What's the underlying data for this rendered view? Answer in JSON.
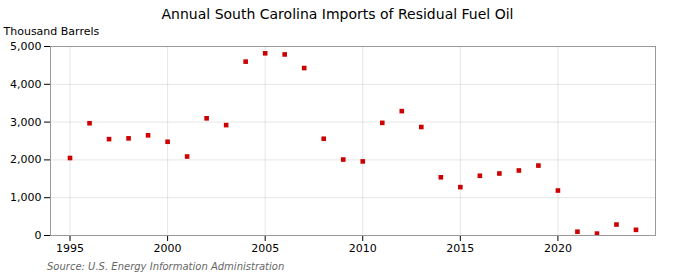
{
  "chart_data": {
    "type": "scatter",
    "title": "Annual South Carolina Imports of Residual Fuel Oil",
    "ylabel": "Thousand Barrels",
    "caption": "Source: U.S. Energy Information Administration",
    "x": [
      1995,
      1996,
      1997,
      1998,
      1999,
      2000,
      2001,
      2002,
      2003,
      2004,
      2005,
      2006,
      2007,
      2008,
      2009,
      2010,
      2011,
      2012,
      2013,
      2014,
      2015,
      2016,
      2017,
      2018,
      2019,
      2020,
      2021,
      2022,
      2023,
      2024
    ],
    "values": [
      2050,
      2970,
      2550,
      2570,
      2650,
      2480,
      2090,
      3100,
      2920,
      4600,
      4820,
      4790,
      4430,
      2560,
      2010,
      1960,
      2980,
      3290,
      2870,
      1540,
      1280,
      1580,
      1640,
      1720,
      1850,
      1190,
      100,
      50,
      290,
      150
    ],
    "color": "#cc0000",
    "marker": "square",
    "xlim": [
      1994.0,
      2025.0
    ],
    "xticks": [
      1995,
      2000,
      2005,
      2010,
      2015,
      2020
    ],
    "ylim": [
      0,
      5000
    ],
    "yticks": [
      0,
      {
        "value": 1000,
        "label": "1,000"
      },
      {
        "value": 2000,
        "label": "2,000"
      },
      {
        "value": 3000,
        "label": "3,000"
      },
      {
        "value": 4000,
        "label": "4,000"
      },
      {
        "value": 5000,
        "label": "5,000"
      }
    ],
    "grid": true
  }
}
